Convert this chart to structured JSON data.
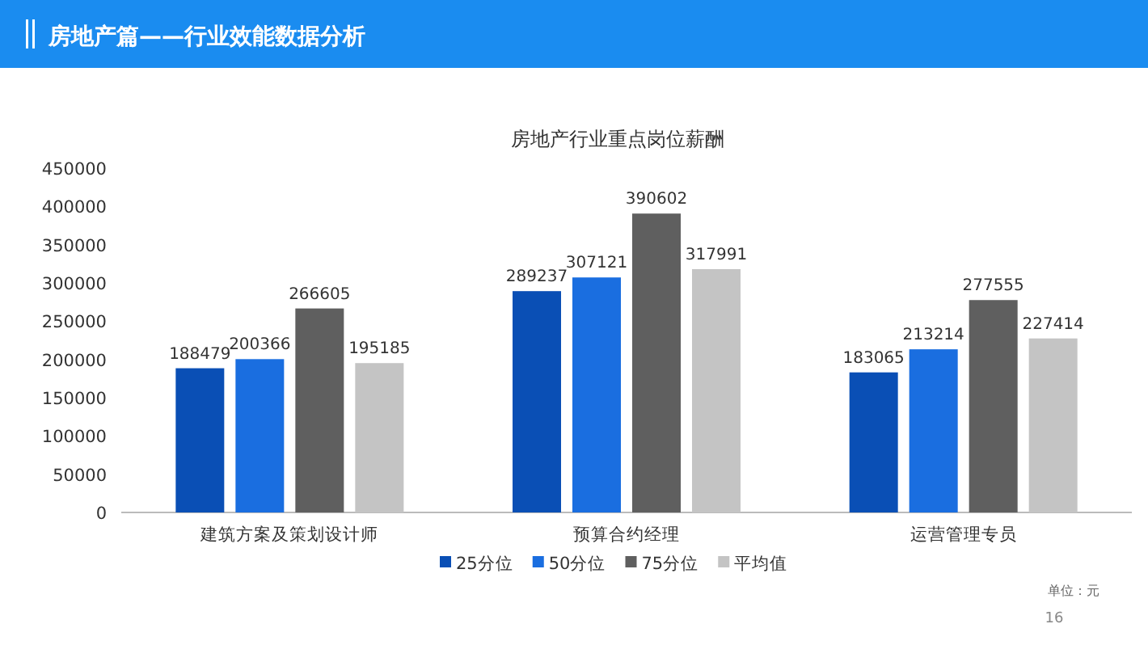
{
  "chart_data": {
    "type": "bar",
    "title": "房地产行业重点岗位薪酬",
    "categories": [
      "建筑方案及策划设计师",
      "预算合约经理",
      "运营管理专员"
    ],
    "series": [
      {
        "name": "25分位",
        "color": "#0a4fb5",
        "values": [
          188479,
          289237,
          183065
        ]
      },
      {
        "name": "50分位",
        "color": "#1a6ee0",
        "values": [
          200366,
          307121,
          213214
        ]
      },
      {
        "name": "75分位",
        "color": "#5f5f5f",
        "values": [
          266605,
          390602,
          277555
        ]
      },
      {
        "name": "平均值",
        "color": "#c4c4c4",
        "values": [
          195185,
          317991,
          227414
        ]
      }
    ],
    "ylim": [
      0,
      450000
    ],
    "yticks": [
      0,
      50000,
      100000,
      150000,
      200000,
      250000,
      300000,
      350000,
      400000,
      450000
    ],
    "data_labels": true,
    "legend": "bottom",
    "grid": false,
    "annotations": [
      "房地产篇——行业效能数据分析",
      "单位：元",
      "16"
    ]
  }
}
